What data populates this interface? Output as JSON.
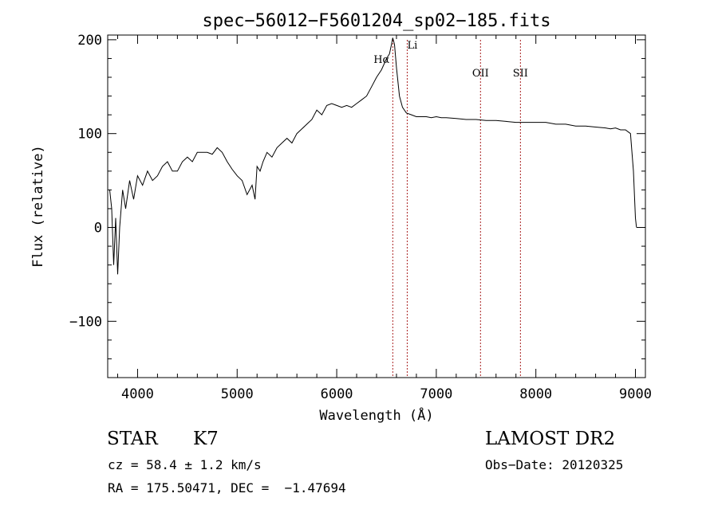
{
  "chart_data": {
    "type": "line",
    "title": "spec−56012−F5601204_sp02−185.fits",
    "xlabel": "Wavelength (Å)",
    "ylabel": "Flux (relative)",
    "xlim": [
      3700,
      9100
    ],
    "ylim": [
      -160,
      205
    ],
    "xticks": [
      4000,
      5000,
      6000,
      7000,
      8000,
      9000
    ],
    "xtick_labels": [
      "4000",
      "5000",
      "6000",
      "7000",
      "8000",
      "9000"
    ],
    "yticks": [
      200,
      100,
      0,
      -100
    ],
    "ytick_labels": [
      "200",
      "100",
      "0",
      "−100"
    ],
    "grid": false,
    "line_color": "#000000",
    "marker_color": "#aa2222",
    "series": [
      {
        "x": [
          3720,
          3740,
          3760,
          3780,
          3800,
          3820,
          3850,
          3880,
          3920,
          3960,
          4000,
          4050,
          4100,
          4150,
          4200,
          4250,
          4300,
          4350,
          4400,
          4450,
          4500,
          4550,
          4600,
          4650,
          4700,
          4750,
          4800,
          4850,
          4900,
          4950,
          5000,
          5050,
          5100,
          5150,
          5180,
          5200,
          5230,
          5260,
          5300,
          5350,
          5400,
          5450,
          5500,
          5550,
          5600,
          5650,
          5700,
          5750,
          5800,
          5850,
          5900,
          5950,
          6000,
          6050,
          6100,
          6150,
          6200,
          6250,
          6300,
          6350,
          6400,
          6450,
          6500,
          6530,
          6550,
          6563,
          6580,
          6600,
          6630,
          6660,
          6700,
          6750,
          6800,
          6850,
          6900,
          6950,
          7000,
          7050,
          7100,
          7200,
          7300,
          7400,
          7500,
          7600,
          7700,
          7800,
          7900,
          8000,
          8100,
          8200,
          8300,
          8400,
          8500,
          8600,
          8700,
          8750,
          8800,
          8850,
          8900,
          8950,
          8980,
          9000,
          9010
        ],
        "y": [
          40,
          20,
          -40,
          10,
          -50,
          0,
          40,
          20,
          50,
          30,
          55,
          45,
          60,
          50,
          55,
          65,
          70,
          60,
          60,
          70,
          75,
          70,
          80,
          80,
          80,
          78,
          85,
          80,
          70,
          62,
          55,
          50,
          35,
          45,
          30,
          65,
          60,
          70,
          80,
          75,
          85,
          90,
          95,
          90,
          100,
          105,
          110,
          115,
          125,
          120,
          130,
          132,
          130,
          128,
          130,
          128,
          132,
          136,
          140,
          150,
          160,
          168,
          180,
          185,
          195,
          202,
          195,
          170,
          140,
          128,
          122,
          120,
          118,
          118,
          118,
          117,
          118,
          117,
          117,
          116,
          115,
          115,
          114,
          114,
          113,
          112,
          112,
          112,
          112,
          110,
          110,
          108,
          108,
          107,
          106,
          105,
          106,
          104,
          104,
          100,
          60,
          10,
          0
        ]
      }
    ],
    "annotations": [
      {
        "label": "Hα",
        "x": 6563
      },
      {
        "label": "Li",
        "x": 6708
      },
      {
        "label": "OII",
        "x": 7444
      },
      {
        "label": "SII",
        "x": 7845
      }
    ],
    "annotation_text": "Hα Li OII SII"
  },
  "footer": {
    "object_class": "STAR",
    "subclass": "K7",
    "survey": "LAMOST DR2",
    "redshift": "cz = 58.4 ± 1.2 km/s",
    "obs_date": "Obs−Date: 20120325",
    "coords": "RA = 175.50471, DEC =  −1.47694"
  }
}
